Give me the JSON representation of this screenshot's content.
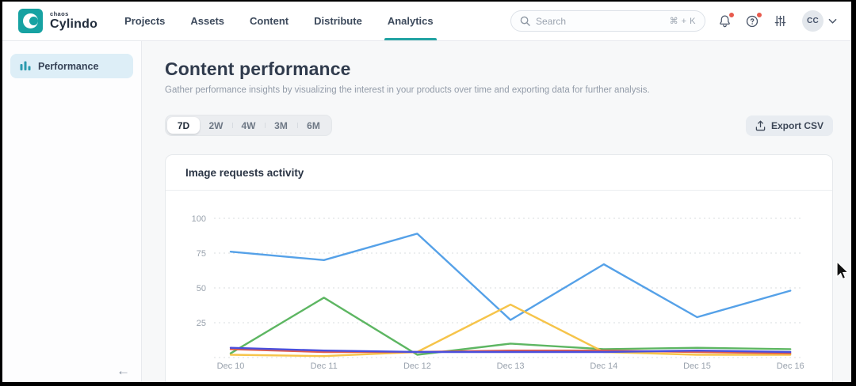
{
  "topbar": {
    "logo": {
      "brand_small": "chaos",
      "brand": "Cylindo"
    },
    "nav": [
      {
        "label": "Projects",
        "active": false
      },
      {
        "label": "Assets",
        "active": false
      },
      {
        "label": "Content",
        "active": false
      },
      {
        "label": "Distribute",
        "active": false
      },
      {
        "label": "Analytics",
        "active": true
      }
    ],
    "search": {
      "placeholder": "Search",
      "shortcut": "⌘ + K"
    },
    "avatar_initials": "CC"
  },
  "sidebar": {
    "items": [
      {
        "label": "Performance",
        "active": true
      }
    ],
    "collapse_icon": "←"
  },
  "main": {
    "title": "Content performance",
    "subtitle": "Gather performance insights by visualizing the interest in your products over time and exporting data for further analysis.",
    "range_options": [
      "7D",
      "2W",
      "4W",
      "3M",
      "6M"
    ],
    "active_range": "7D",
    "export_label": "Export CSV",
    "card_title": "Image requests activity"
  },
  "colors": {
    "brand_teal": "#17a2a2",
    "active_item_bg": "#ddeef7",
    "badge_red": "#e85a4d",
    "grid_line": "#d8dcdf"
  },
  "chart_data": {
    "type": "line",
    "title": "Image requests activity",
    "x": [
      "Dec 10",
      "Dec 11",
      "Dec 12",
      "Dec 13",
      "Dec 14",
      "Dec 15",
      "Dec 16"
    ],
    "series": [
      {
        "name": "blue-series",
        "color": "#55a1e8",
        "values": [
          76,
          70,
          89,
          27,
          67,
          29,
          48
        ]
      },
      {
        "name": "green-series",
        "color": "#5db662",
        "values": [
          3,
          43,
          2,
          10,
          6,
          7,
          6
        ]
      },
      {
        "name": "yellow-series",
        "color": "#f6c44a",
        "values": [
          2,
          1,
          4,
          38,
          4,
          2,
          2
        ]
      },
      {
        "name": "red-series",
        "color": "#e05b4b",
        "values": [
          6,
          4,
          4,
          5,
          5,
          4,
          3
        ]
      },
      {
        "name": "indigo-series",
        "color": "#4a4fdd",
        "values": [
          7,
          5,
          4,
          4,
          4,
          5,
          4
        ]
      }
    ],
    "yticks": [
      25,
      50,
      75,
      100
    ],
    "ylim": [
      0,
      110
    ],
    "grid": "dashed-horizontal",
    "legend": "none"
  }
}
